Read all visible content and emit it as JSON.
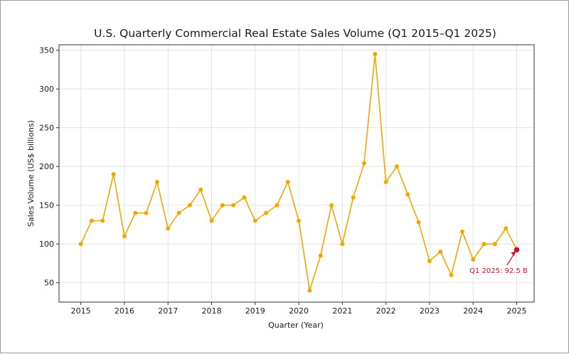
{
  "chart_data": {
    "type": "line",
    "title": "U.S. Quarterly Commercial Real Estate Sales Volume (Q1 2015–Q1 2025)",
    "xlabel": "Quarter (Year)",
    "ylabel": "Sales Volume (US$ billions)",
    "xlim": [
      2014.5,
      2025.4
    ],
    "ylim": [
      25,
      357
    ],
    "xticks": [
      2015,
      2016,
      2017,
      2018,
      2019,
      2020,
      2021,
      2022,
      2023,
      2024,
      2025
    ],
    "yticks": [
      50,
      100,
      150,
      200,
      250,
      300,
      350
    ],
    "grid": true,
    "line_color": "#f0a800",
    "highlight_color": "#d0102b",
    "series": [
      {
        "x": [
          2015,
          2015.25,
          2015.5,
          2015.75,
          2016,
          2016.25,
          2016.5,
          2016.75,
          2017,
          2017.25,
          2017.5,
          2017.75,
          2018,
          2018.25,
          2018.5,
          2018.75,
          2019,
          2019.25,
          2019.5,
          2019.75,
          2020,
          2020.25,
          2020.5,
          2020.75,
          2021,
          2021.25,
          2021.5,
          2021.75,
          2022,
          2022.25,
          2022.5,
          2022.75,
          2023,
          2023.25,
          2023.5,
          2023.75,
          2024,
          2024.25,
          2024.5,
          2024.75,
          2025
        ],
        "y": [
          100,
          130,
          130,
          190,
          110,
          140,
          140,
          180,
          120,
          140,
          150,
          170,
          130,
          150,
          150,
          160,
          130,
          140,
          150,
          180,
          130,
          40,
          85,
          150,
          100,
          160,
          204,
          345,
          180,
          200,
          164,
          128,
          78,
          90,
          60,
          116,
          80,
          100,
          100,
          120,
          92.5
        ]
      }
    ],
    "annotation": {
      "text": "Q1 2025: 92.5 B",
      "x": 2025,
      "y": 92.5
    }
  }
}
